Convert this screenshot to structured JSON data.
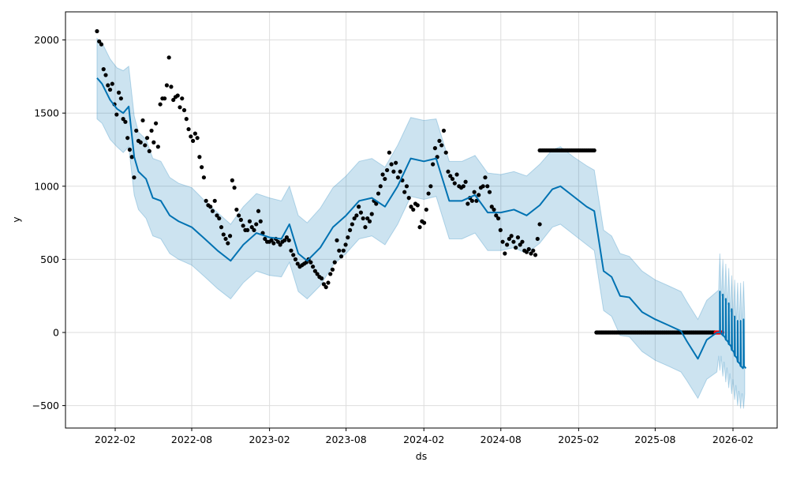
{
  "chart_data": {
    "type": "line",
    "title": "",
    "xlabel": "ds",
    "ylabel": "y",
    "xlim": [
      "2021-11-10",
      "2026-04-10"
    ],
    "ylim": [
      -650,
      2195
    ],
    "grid": true,
    "x_ticks": [
      "2022-02",
      "2022-08",
      "2023-02",
      "2023-08",
      "2024-02",
      "2024-08",
      "2025-02",
      "2025-08",
      "2026-02"
    ],
    "y_ticks": [
      2000,
      1500,
      1000,
      500,
      0,
      -500
    ],
    "y_tick_labels": [
      "2000",
      "1500",
      "1000",
      "500",
      "0",
      "−500"
    ],
    "colors": {
      "forecast": "#0072B2",
      "interval": "#0072B2",
      "observed": "#000000",
      "recent": "#ff0000"
    },
    "forecast": {
      "dates": [
        "2021-12-20",
        "2022-01-01",
        "2022-01-20",
        "2022-02-05",
        "2022-02-20",
        "2022-03-05",
        "2022-03-18",
        "2022-03-28",
        "2022-04-15",
        "2022-05-01",
        "2022-05-20",
        "2022-06-10",
        "2022-07-01",
        "2022-08-01",
        "2022-09-01",
        "2022-10-01",
        "2022-11-01",
        "2022-12-01",
        "2023-01-01",
        "2023-02-01",
        "2023-03-01",
        "2023-03-20",
        "2023-04-10",
        "2023-05-01",
        "2023-06-01",
        "2023-07-01",
        "2023-08-01",
        "2023-09-01",
        "2023-10-01",
        "2023-11-01",
        "2023-12-01",
        "2024-01-01",
        "2024-02-01",
        "2024-03-01",
        "2024-04-01",
        "2024-05-01",
        "2024-06-01",
        "2024-07-01",
        "2024-08-01",
        "2024-09-01",
        "2024-10-01",
        "2024-11-01",
        "2024-12-01",
        "2024-12-20",
        "2025-01-20",
        "2025-02-20",
        "2025-03-10",
        "2025-04-01",
        "2025-04-20",
        "2025-05-10",
        "2025-06-01",
        "2025-07-01",
        "2025-08-01",
        "2025-09-01",
        "2025-10-01",
        "2025-10-15",
        "2025-11-10",
        "2025-12-01",
        "2025-12-25"
      ],
      "yhat": [
        1740,
        1700,
        1590,
        1530,
        1500,
        1545,
        1200,
        1100,
        1050,
        920,
        900,
        800,
        760,
        720,
        640,
        560,
        490,
        600,
        680,
        650,
        640,
        740,
        540,
        490,
        580,
        720,
        800,
        900,
        920,
        860,
        1000,
        1190,
        1170,
        1190,
        900,
        900,
        940,
        820,
        820,
        840,
        800,
        870,
        980,
        1000,
        930,
        860,
        830,
        420,
        380,
        250,
        240,
        140,
        90,
        50,
        10,
        -60,
        -180,
        -50,
        0
      ],
      "upper": [
        2010,
        1980,
        1870,
        1810,
        1790,
        1820,
        1480,
        1370,
        1320,
        1190,
        1170,
        1060,
        1020,
        990,
        900,
        820,
        740,
        860,
        950,
        920,
        900,
        1000,
        800,
        750,
        850,
        990,
        1070,
        1170,
        1190,
        1130,
        1280,
        1470,
        1450,
        1460,
        1170,
        1170,
        1210,
        1090,
        1080,
        1100,
        1070,
        1150,
        1250,
        1270,
        1200,
        1140,
        1110,
        700,
        660,
        540,
        520,
        420,
        360,
        320,
        280,
        210,
        90,
        220,
        280
      ],
      "lower": [
        1460,
        1430,
        1320,
        1270,
        1230,
        1270,
        940,
        840,
        780,
        660,
        640,
        540,
        500,
        460,
        380,
        300,
        230,
        340,
        420,
        390,
        380,
        480,
        280,
        230,
        320,
        460,
        540,
        640,
        660,
        600,
        740,
        930,
        910,
        930,
        640,
        640,
        680,
        560,
        560,
        580,
        540,
        610,
        720,
        740,
        670,
        600,
        560,
        150,
        110,
        -20,
        -30,
        -130,
        -190,
        -230,
        -270,
        -330,
        -450,
        -320,
        -270
      ]
    },
    "forecast_tail": {
      "dates": [
        "2026-01-01",
        "2026-01-08",
        "2026-01-15",
        "2026-01-22",
        "2026-01-29",
        "2026-02-05",
        "2026-02-12",
        "2026-02-19",
        "2026-02-26"
      ],
      "base": [
        0,
        -20,
        -50,
        -80,
        -120,
        -160,
        -200,
        -230,
        -230
      ],
      "peak": [
        280,
        260,
        230,
        200,
        160,
        110,
        80,
        80,
        90
      ],
      "upper": [
        540,
        500,
        470,
        440,
        390,
        360,
        340,
        340,
        350
      ],
      "lower": [
        -260,
        -300,
        -340,
        -380,
        -420,
        -460,
        -500,
        -520,
        -520
      ]
    },
    "observed": {
      "start": "2021-12-20",
      "end": "2024-11-01",
      "values": [
        2060,
        1990,
        1970,
        1800,
        1760,
        1690,
        1660,
        1700,
        1560,
        1490,
        1640,
        1600,
        1460,
        1440,
        1330,
        1250,
        1200,
        1060,
        1380,
        1310,
        1300,
        1450,
        1280,
        1330,
        1240,
        1380,
        1300,
        1430,
        1270,
        1560,
        1600,
        1600,
        1690,
        1880,
        1680,
        1590,
        1610,
        1620,
        1540,
        1600,
        1520,
        1460,
        1390,
        1340,
        1310,
        1360,
        1330,
        1200,
        1130,
        1060,
        900,
        870,
        860,
        830,
        900,
        800,
        780,
        720,
        670,
        640,
        610,
        660,
        1040,
        990,
        840,
        800,
        770,
        730,
        700,
        700,
        760,
        720,
        700,
        740,
        830,
        760,
        680,
        640,
        620,
        620,
        630,
        610,
        640,
        620,
        600,
        620,
        630,
        650,
        630,
        560,
        530,
        500,
        470,
        450,
        460,
        470,
        480,
        500,
        480,
        450,
        420,
        400,
        380,
        370,
        330,
        310,
        340,
        400,
        430,
        480,
        630,
        560,
        520,
        560,
        600,
        650,
        700,
        740,
        780,
        800,
        860,
        820,
        780,
        720,
        780,
        760,
        810,
        900,
        880,
        950,
        1000,
        1080,
        1050,
        1110,
        1230,
        1150,
        1100,
        1160,
        1060,
        1100,
        1040,
        960,
        1000,
        920,
        860,
        840,
        880,
        870,
        720,
        760,
        750,
        840,
        950,
        1000,
        1150,
        1260,
        1200,
        1310,
        1280,
        1380,
        1230,
        1100,
        1070,
        1050,
        1020,
        1080,
        1000,
        990,
        1000,
        1030,
        880,
        920,
        900,
        960,
        900,
        940,
        990,
        1000,
        1060,
        1000,
        960,
        860,
        840,
        800,
        780,
        700,
        620,
        540,
        600,
        640,
        660,
        620,
        580,
        650,
        600,
        620,
        560,
        550,
        570,
        540,
        560,
        530,
        640,
        740
      ]
    },
    "observed_flat_segments": [
      {
        "start": "2024-11-01",
        "end": "2025-03-10",
        "value": 1245
      },
      {
        "start": "2025-03-15",
        "end": "2025-12-22",
        "value": 0
      }
    ],
    "recent_observed": {
      "start": "2025-12-22",
      "end": "2026-01-08",
      "value": 0
    }
  }
}
